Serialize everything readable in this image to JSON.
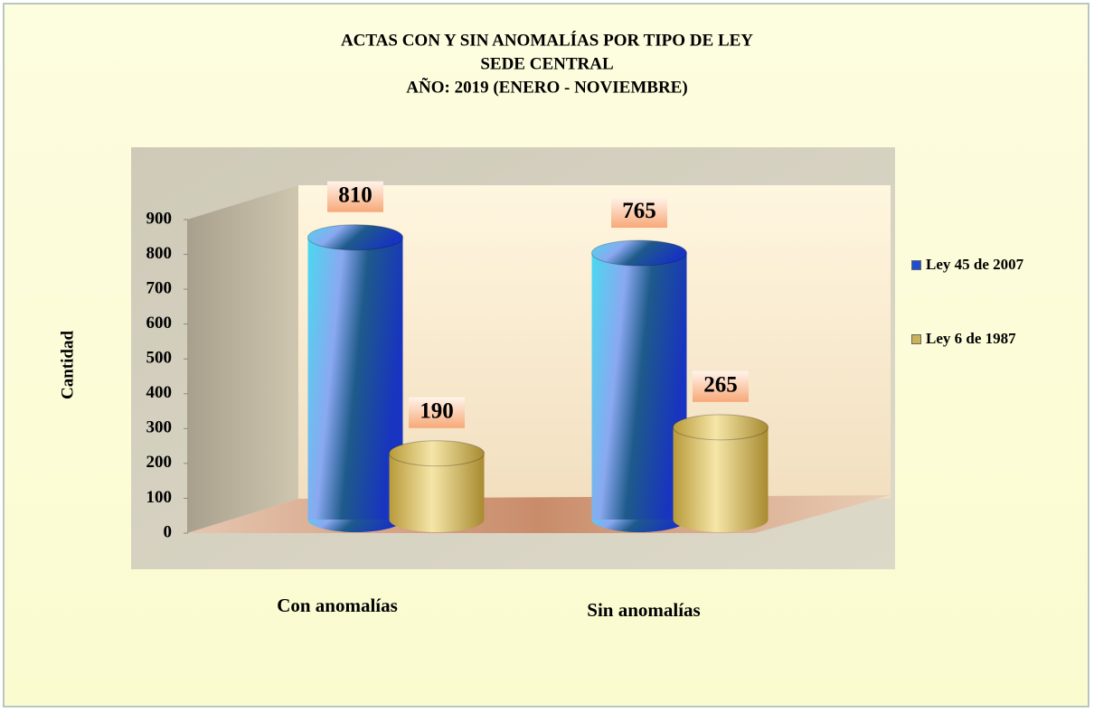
{
  "chart_data": {
    "type": "bar",
    "title": "ACTAS CON Y SIN ANOMALÍAS  POR TIPO DE LEY",
    "subtitle": "SEDE CENTRAL",
    "period": "AÑO: 2019 (ENERO  - NOVIEMBRE)",
    "ylabel": "Cantidad",
    "categories": [
      "Con anomalías",
      "Sin anomalías"
    ],
    "series": [
      {
        "name": "Ley 45 de 2007",
        "color": "#1f4fd0",
        "values": [
          810,
          765
        ]
      },
      {
        "name": "Ley 6 de 1987",
        "color": "#c9b25a",
        "values": [
          190,
          265
        ]
      }
    ],
    "ylim": [
      0,
      900
    ],
    "yticks": [
      0,
      100,
      200,
      300,
      400,
      500,
      600,
      700,
      800,
      900
    ],
    "legend": "right"
  }
}
